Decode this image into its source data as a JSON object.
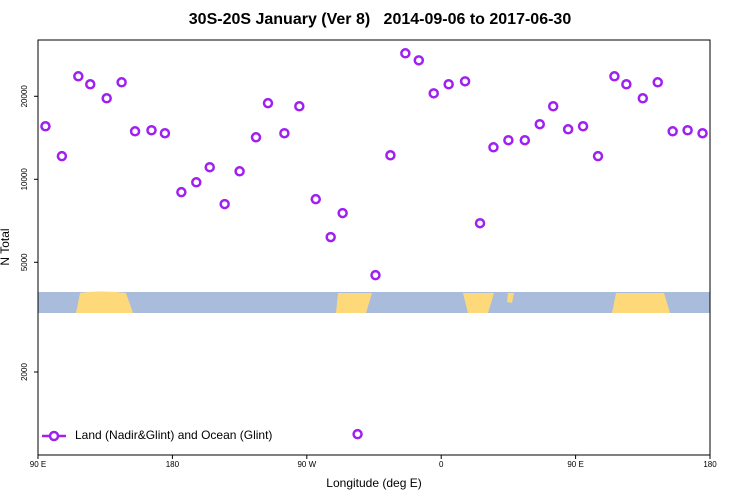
{
  "chart_data": {
    "type": "scatter",
    "title": "30S-20S January (Ver 8)   2014-09-06 to 2017-06-30",
    "x_label": "Longitude (deg E)",
    "y_label": "N Total",
    "xlim": [
      90,
      540
    ],
    "xticks": [
      {
        "value": 90,
        "label": "90 E"
      },
      180,
      {
        "value": 270,
        "label": "90 W"
      },
      {
        "value": 360,
        "label": "0"
      },
      {
        "value": 450,
        "label": "90 E"
      },
      {
        "value": 540,
        "label": "180"
      }
    ],
    "ylim": [
      1000,
      32000
    ],
    "yticks": [
      2000,
      5000,
      10000,
      20000
    ],
    "ylog": true,
    "grid": false,
    "legend": "bottom-left",
    "series": [
      {
        "name": "Land (Nadir&Glint) and Ocean (Glint)",
        "color": "#a020f0",
        "x": [
          95,
          106,
          117,
          125,
          136,
          146,
          155,
          166,
          175,
          186,
          196,
          205,
          215,
          225,
          236,
          244,
          255,
          265,
          276,
          286,
          294,
          304,
          316,
          326,
          336,
          345,
          355,
          365,
          376,
          386,
          395,
          405,
          416,
          426,
          435,
          445,
          455,
          465,
          476,
          484,
          495,
          505,
          515,
          525,
          535
        ],
        "values": [
          15570,
          12130,
          23630,
          22110,
          19670,
          22480,
          14930,
          15060,
          14690,
          8980,
          9750,
          11060,
          8130,
          10690,
          14200,
          18880,
          14690,
          18400,
          8470,
          6170,
          7540,
          1190,
          4490,
          12220,
          28640,
          27000,
          20500,
          22110,
          22660,
          6930,
          13060,
          13860,
          13860,
          15840,
          18400,
          15180,
          15570,
          12130,
          23630,
          22110,
          19670,
          22480,
          14930,
          15060,
          14690
        ]
      }
    ]
  }
}
